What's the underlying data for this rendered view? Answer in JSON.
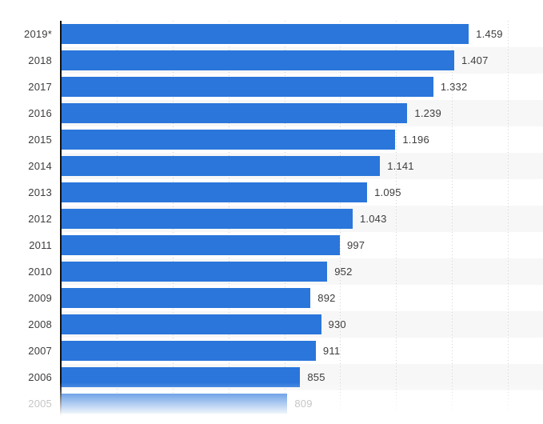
{
  "chart_data": {
    "type": "bar",
    "orientation": "horizontal",
    "categories": [
      "2019*",
      "2018",
      "2017",
      "2016",
      "2015",
      "2014",
      "2013",
      "2012",
      "2011",
      "2010",
      "2009",
      "2008",
      "2007",
      "2006",
      "2005"
    ],
    "values": [
      1459,
      1407,
      1332,
      1239,
      1196,
      1141,
      1095,
      1043,
      997,
      952,
      892,
      930,
      911,
      855,
      809
    ],
    "value_labels": [
      "1.459",
      "1.407",
      "1.332",
      "1.239",
      "1.196",
      "1.141",
      "1.095",
      "1.043",
      "997",
      "952",
      "892",
      "930",
      "911",
      "855",
      "809"
    ],
    "xlim": [
      0,
      1725
    ],
    "grid_values": [
      200,
      400,
      600,
      800,
      1000,
      1200,
      1400,
      1600
    ],
    "grid": "vertical-dotted",
    "legend": null,
    "row_striping": "alternating",
    "fade_last_row": true
  },
  "colors": {
    "bar": "#2a76db",
    "text": "#3d3d3f",
    "faded_text": "#c6c6c6",
    "stripe": "#f7f7f7",
    "gridline": "#ccd2d8",
    "axis": "#111111"
  }
}
